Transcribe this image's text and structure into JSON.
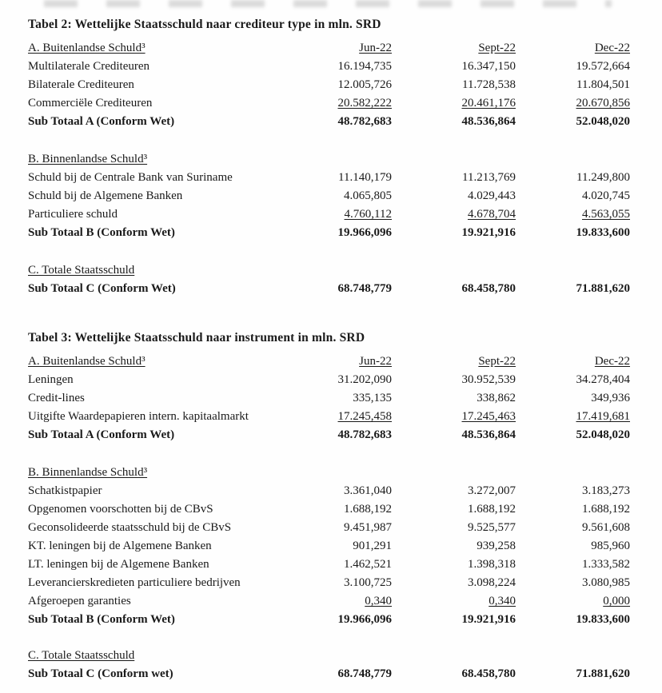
{
  "columns": [
    "Jun-22",
    "Sept-22",
    "Dec-22"
  ],
  "tables": [
    {
      "title": "Tabel 2: Wettelijke Staatsschuld naar crediteur type in mln. SRD",
      "sections": [
        {
          "header": "A. Buitenlandse Schuld³",
          "rows": [
            {
              "label": "Multilaterale Crediteuren",
              "values": [
                "16.194,735",
                "16.347,150",
                "19.572,664"
              ]
            },
            {
              "label": "Bilaterale Crediteuren",
              "values": [
                "12.005,726",
                "11.728,538",
                "11.804,501"
              ]
            },
            {
              "label": "Commerciële Crediteuren",
              "values": [
                "20.582,222",
                "20.461,176",
                "20.670,856"
              ]
            },
            {
              "label": "Sub Totaal A (Conform Wet)",
              "values": [
                "48.782,683",
                "48.536,864",
                "52.048,020"
              ]
            }
          ]
        },
        {
          "header": "B. Binnenlandse Schuld³",
          "rows": [
            {
              "label": "Schuld bij de Centrale Bank van Suriname",
              "values": [
                "11.140,179",
                "11.213,769",
                "11.249,800"
              ]
            },
            {
              "label": "Schuld bij de Algemene Banken",
              "values": [
                "4.065,805",
                "4.029,443",
                "4.020,745"
              ]
            },
            {
              "label": "Particuliere schuld",
              "values": [
                "4.760,112",
                "4.678,704",
                "4.563,055"
              ]
            },
            {
              "label": "Sub Totaal B (Conform Wet)",
              "values": [
                "19.966,096",
                "19.921,916",
                "19.833,600"
              ]
            }
          ]
        },
        {
          "header": "C. Totale Staatsschuld",
          "rows": [
            {
              "label": "Sub Totaal C (Conform Wet)",
              "values": [
                "68.748,779",
                "68.458,780",
                "71.881,620"
              ]
            }
          ]
        }
      ]
    },
    {
      "title": "Tabel 3: Wettelijke Staatsschuld naar instrument in mln. SRD",
      "sections": [
        {
          "header": "A. Buitenlandse Schuld³",
          "rows": [
            {
              "label": "Leningen",
              "values": [
                "31.202,090",
                "30.952,539",
                "34.278,404"
              ]
            },
            {
              "label": "Credit-lines",
              "values": [
                "335,135",
                "338,862",
                "349,936"
              ]
            },
            {
              "label": "Uitgifte Waardepapieren intern. kapitaalmarkt",
              "values": [
                "17.245,458",
                "17.245,463",
                "17.419,681"
              ]
            },
            {
              "label": "Sub Totaal A (Conform Wet)",
              "values": [
                "48.782,683",
                "48.536,864",
                "52.048,020"
              ]
            }
          ]
        },
        {
          "header": "B. Binnenlandse Schuld³",
          "rows": [
            {
              "label": "Schatkistpapier",
              "values": [
                "3.361,040",
                "3.272,007",
                "3.183,273"
              ]
            },
            {
              "label": "Opgenomen voorschotten bij de CBvS",
              "values": [
                "1.688,192",
                "1.688,192",
                "1.688,192"
              ]
            },
            {
              "label": "Geconsolideerde staatsschuld bij de CBvS",
              "values": [
                "9.451,987",
                "9.525,577",
                "9.561,608"
              ]
            },
            {
              "label": "KT. leningen bij de Algemene Banken",
              "values": [
                "901,291",
                "939,258",
                "985,960"
              ]
            },
            {
              "label": "LT. leningen bij de Algemene Banken",
              "values": [
                "1.462,521",
                "1.398,318",
                "1.333,582"
              ]
            },
            {
              "label": "Leverancierskredieten particuliere bedrijven",
              "values": [
                "3.100,725",
                "3.098,224",
                "3.080,985"
              ]
            },
            {
              "label": "Afgeroepen garanties",
              "values": [
                "0,340",
                "0,340",
                "0,000"
              ]
            },
            {
              "label": "Sub Totaal B (Conform Wet)",
              "values": [
                "19.966,096",
                "19.921,916",
                "19.833,600"
              ]
            }
          ]
        },
        {
          "header": "C. Totale Staatsschuld",
          "rows": [
            {
              "label": "Sub Totaal C (Conform wet)",
              "values": [
                "68.748,779",
                "68.458,780",
                "71.881,620"
              ]
            }
          ]
        }
      ]
    }
  ]
}
